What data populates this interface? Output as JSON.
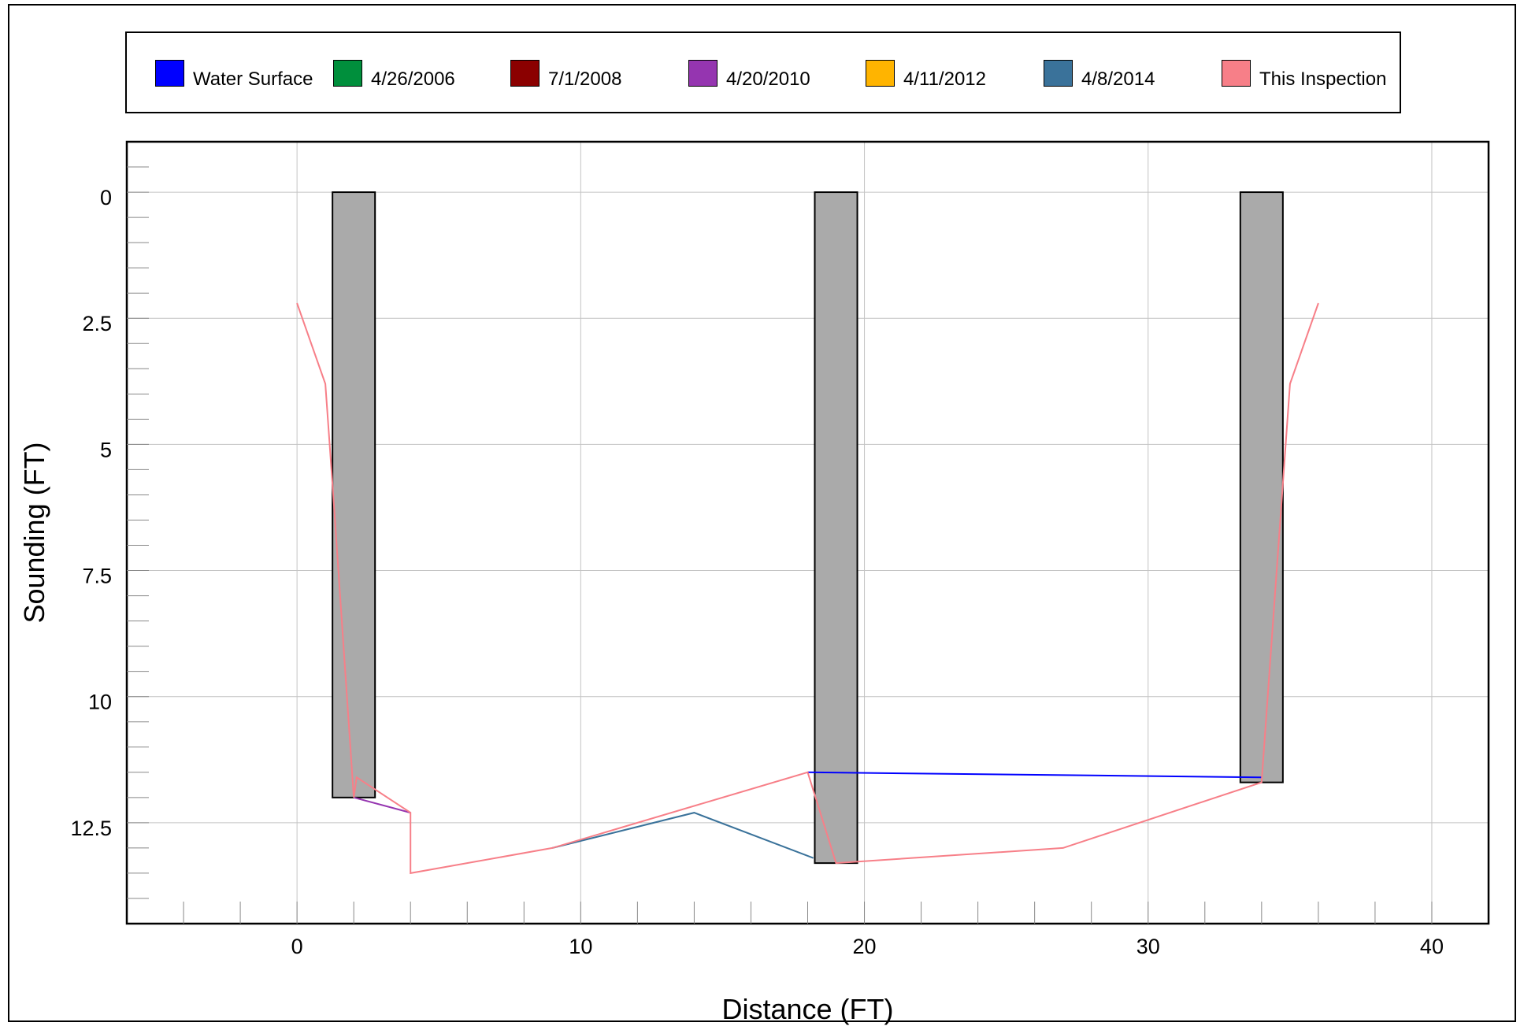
{
  "chart_data": {
    "type": "line",
    "title": "",
    "xlabel": "Distance (FT)",
    "ylabel": "Sounding (FT)",
    "xlim": [
      -6,
      42
    ],
    "ylim": [
      -1,
      14.5
    ],
    "y_inverted": true,
    "grid": true,
    "legend_position": "top",
    "x_ticks": [
      0,
      10,
      20,
      30,
      40
    ],
    "x_tick_labels": [
      "0",
      "10",
      "20",
      "30",
      "40"
    ],
    "y_ticks": [
      0,
      2.5,
      5,
      7.5,
      10,
      12.5
    ],
    "y_tick_labels": [
      "0",
      "2.5",
      "5",
      "7.5",
      "10",
      "12.5"
    ],
    "legend": [
      {
        "name": "Water Surface",
        "color": "#0000ff"
      },
      {
        "name": "4/26/2006",
        "color": "#008f3c"
      },
      {
        "name": "7/1/2008",
        "color": "#8b0000"
      },
      {
        "name": "4/20/2010",
        "color": "#9535b0"
      },
      {
        "name": "4/11/2012",
        "color": "#ffb400"
      },
      {
        "name": "4/8/2014",
        "color": "#3a729a"
      },
      {
        "name": "This Inspection",
        "color": "#f77f88"
      }
    ],
    "series": [
      {
        "name": "Water Surface",
        "color": "#0000ff",
        "x": [
          18,
          34
        ],
        "y": [
          11.5,
          11.6
        ]
      },
      {
        "name": "4/20/2010",
        "color": "#9535b0",
        "x": [
          2,
          4
        ],
        "y": [
          12,
          12.3
        ]
      },
      {
        "name": "4/8/2014",
        "color": "#3a729a",
        "x": [
          9,
          14,
          18.2
        ],
        "y": [
          13.0,
          12.3,
          13.2
        ]
      },
      {
        "name": "This Inspection",
        "color": "#f77f88",
        "x": [
          0,
          1,
          1.3,
          2,
          2.1,
          4,
          4,
          9,
          18,
          19,
          27,
          34,
          35,
          36
        ],
        "y": [
          2.2,
          3.8,
          6.2,
          12.0,
          11.6,
          12.3,
          13.5,
          13.0,
          11.5,
          13.3,
          13.0,
          11.7,
          3.8,
          2.2
        ]
      }
    ],
    "piers": [
      {
        "x_left": 1.25,
        "x_right": 2.75,
        "top": 0,
        "bottom": 12.0
      },
      {
        "x_left": 18.25,
        "x_right": 19.75,
        "top": 0,
        "bottom": 13.3
      },
      {
        "x_left": 33.25,
        "x_right": 34.75,
        "top": 0,
        "bottom": 11.7
      }
    ],
    "pier_color": "#aaaaaa"
  }
}
